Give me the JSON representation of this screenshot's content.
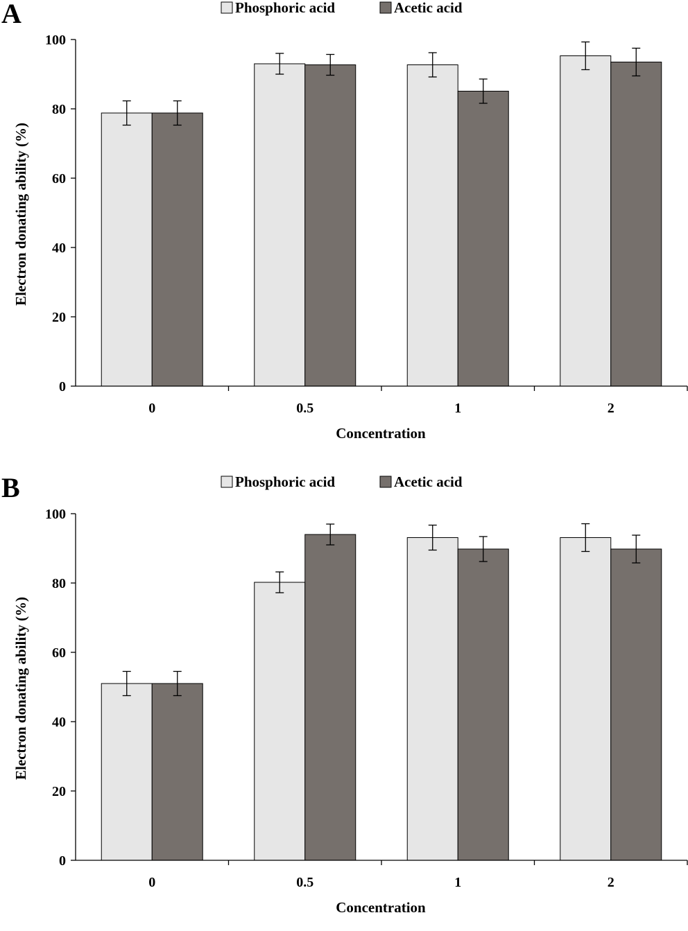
{
  "chart_data": [
    {
      "panel_label": "A",
      "type": "bar",
      "categories": [
        "0",
        "0.5",
        "1",
        "2"
      ],
      "series": [
        {
          "name": "Phosphoric acid",
          "color": "#e6e6e6",
          "values": [
            78.8,
            93.0,
            92.7,
            95.3
          ],
          "errors": [
            3.5,
            3.0,
            3.5,
            4.0
          ]
        },
        {
          "name": "Acetic acid",
          "color": "#76706c",
          "values": [
            78.8,
            92.7,
            85.1,
            93.5
          ],
          "errors": [
            3.5,
            3.0,
            3.5,
            4.0
          ]
        }
      ],
      "xlabel": "Concentration",
      "ylabel": "Electron donating ability (%)",
      "ylim": [
        0,
        100
      ],
      "yticks": [
        "0",
        "20",
        "40",
        "60",
        "80",
        "100"
      ],
      "legend": "top-center",
      "grid": false
    },
    {
      "panel_label": "B",
      "type": "bar",
      "categories": [
        "0",
        "0.5",
        "1",
        "2"
      ],
      "series": [
        {
          "name": "Phosphoric acid",
          "color": "#e6e6e6",
          "values": [
            51.0,
            80.2,
            93.1,
            93.1
          ],
          "errors": [
            3.5,
            3.0,
            3.6,
            4.0
          ]
        },
        {
          "name": "Acetic acid",
          "color": "#76706c",
          "values": [
            51.0,
            94.0,
            89.8,
            89.8
          ],
          "errors": [
            3.5,
            3.0,
            3.6,
            4.0
          ]
        }
      ],
      "xlabel": "Concentration",
      "ylabel": "Electron donating ability (%)",
      "ylim": [
        0,
        100
      ],
      "yticks": [
        "0",
        "20",
        "40",
        "60",
        "80",
        "100"
      ],
      "legend": "top-center",
      "grid": false
    }
  ]
}
